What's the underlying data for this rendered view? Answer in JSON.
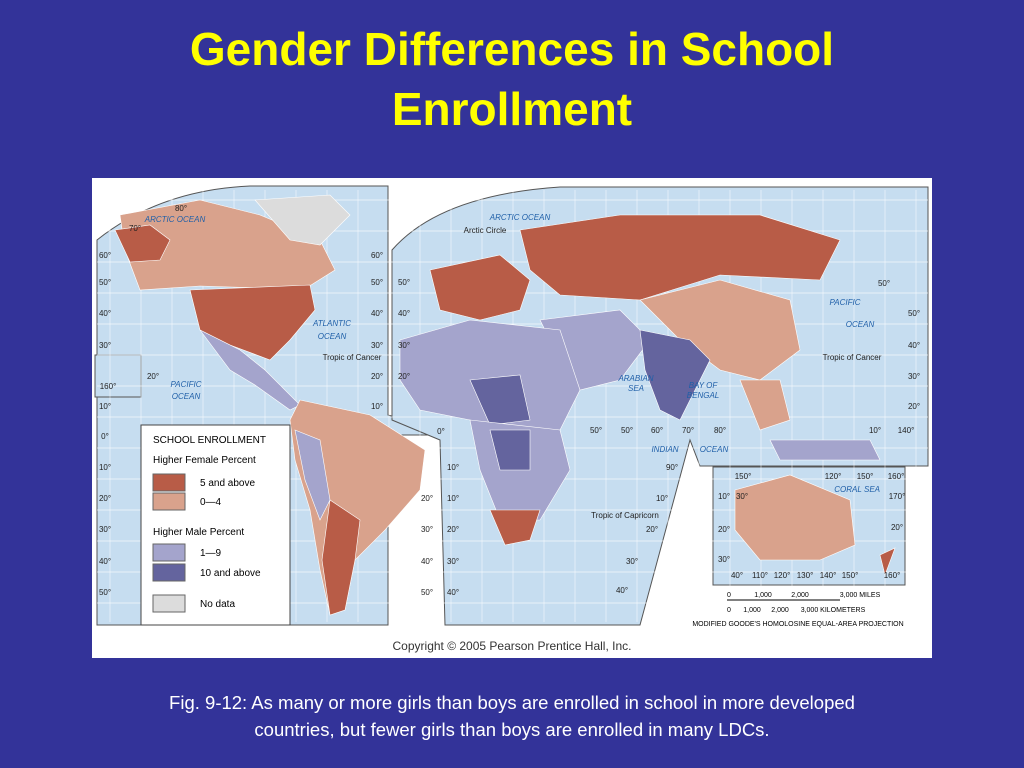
{
  "title_lines": [
    "Gender Differences in School",
    "Enrollment"
  ],
  "legend": {
    "title": "SCHOOL ENROLLMENT",
    "groups": [
      {
        "heading": "Higher Female Percent",
        "items": [
          {
            "label": "5 and above",
            "color": "#b85c47"
          },
          {
            "label": "0—4",
            "color": "#d9a28c"
          }
        ]
      },
      {
        "heading": "Higher Male Percent",
        "items": [
          {
            "label": "1—9",
            "color": "#a4a4cc"
          },
          {
            "label": "10 and above",
            "color": "#64649e"
          }
        ]
      }
    ],
    "no_data": {
      "label": "No data",
      "color": "#dcdcdc"
    }
  },
  "place_labels": [
    "ARCTIC OCEAN",
    "ARCTIC OCEAN",
    "Arctic Circle",
    "ATLANTIC",
    "OCEAN",
    "Tropic of Cancer",
    "PACIFIC",
    "OCEAN",
    "PACIFIC",
    "OCEAN",
    "Tropic of Cancer",
    "ARABIAN",
    "SEA",
    "BAY OF",
    "BENGAL",
    "INDIAN",
    "OCEAN",
    "Tropic of Capricorn",
    "CORAL",
    "SEA"
  ],
  "degree_labels": [
    "80°",
    "70°",
    "60°",
    "50°",
    "40°",
    "30°",
    "20°",
    "160°",
    "10°",
    "0°",
    "10°",
    "20°",
    "30°",
    "40°",
    "50°",
    "60°",
    "50°",
    "40°",
    "30°",
    "20°",
    "10°",
    "0°",
    "20°",
    "30°",
    "40°",
    "50°",
    "50°",
    "40°",
    "30°",
    "20°",
    "10°",
    "10°",
    "20°",
    "30°",
    "40°",
    "50°",
    "50°",
    "60°",
    "70°",
    "80°",
    "90°",
    "10°",
    "20°",
    "30°",
    "40°",
    "50°",
    "50°",
    "40°",
    "30°",
    "20°",
    "10°",
    "140°",
    "150°",
    "120°",
    "150°",
    "160°",
    "170°",
    "20°",
    "30°",
    "10°",
    "20°",
    "30°",
    "40°",
    "110°",
    "120°",
    "130°",
    "140°",
    "150°",
    "160°",
    "180°"
  ],
  "scale": {
    "miles": [
      "0",
      "1,000",
      "2,000",
      "3,000 MILES"
    ],
    "kilometers": [
      "0",
      "1,000",
      "2,000",
      "3,000 KILOMETERS"
    ],
    "projection": "MODIFIED GOODE'S HOMOLOSINE EQUAL-AREA PROJECTION"
  },
  "copyright": "Copyright © 2005 Pearson Prentice Hall, Inc.",
  "caption_lines": [
    "Fig. 9-12: As many or more girls than boys are enrolled in school in more developed",
    "countries, but fewer girls than boys are enrolled in many LDCs."
  ]
}
